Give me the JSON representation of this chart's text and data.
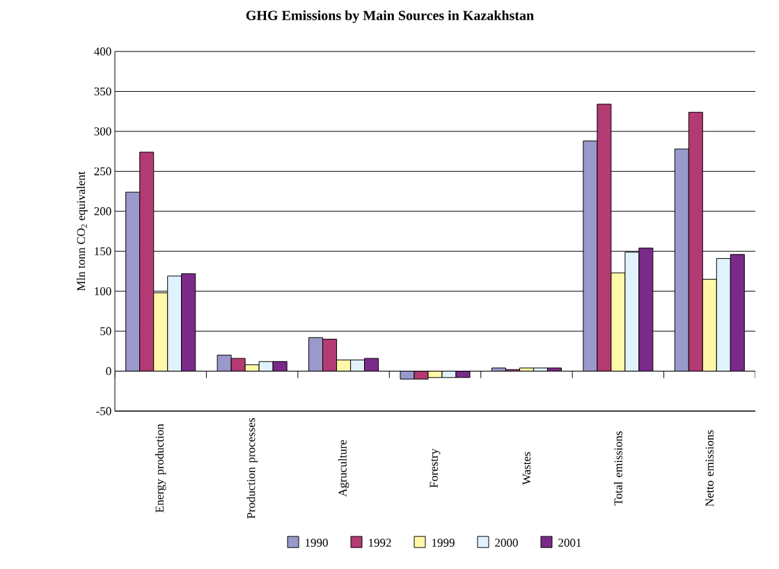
{
  "chart_data": {
    "type": "bar",
    "title": "GHG Emissions by Main Sources in Kazakhstan",
    "ylabel": "Mln tonn CO$_{2}$ equivalent",
    "categories": [
      "Energy production",
      "Production processes",
      "Agruculture",
      "Forestry",
      "Wastes",
      "Total emissions",
      "Netto emissions"
    ],
    "series": [
      {
        "name": "1990",
        "color": "#9999cc",
        "values": [
          224,
          20,
          42,
          -10,
          4,
          288,
          278
        ]
      },
      {
        "name": "1992",
        "color": "#b33a73",
        "values": [
          274,
          16,
          40,
          -10,
          2,
          334,
          324
        ]
      },
      {
        "name": "1999",
        "color": "#fff8a8",
        "values": [
          98,
          8,
          14,
          -8,
          4,
          123,
          115
        ]
      },
      {
        "name": "2000",
        "color": "#e0f2fc",
        "values": [
          119,
          12,
          14,
          -8,
          4,
          149,
          141
        ]
      },
      {
        "name": "2001",
        "color": "#7b2a8a",
        "values": [
          122,
          12,
          16,
          -8,
          4,
          154,
          146
        ]
      }
    ],
    "ylim": [
      -50,
      400
    ],
    "yticks": [
      -50,
      0,
      50,
      100,
      150,
      200,
      250,
      300,
      350,
      400
    ],
    "grid": "y",
    "legend": "bottom"
  }
}
